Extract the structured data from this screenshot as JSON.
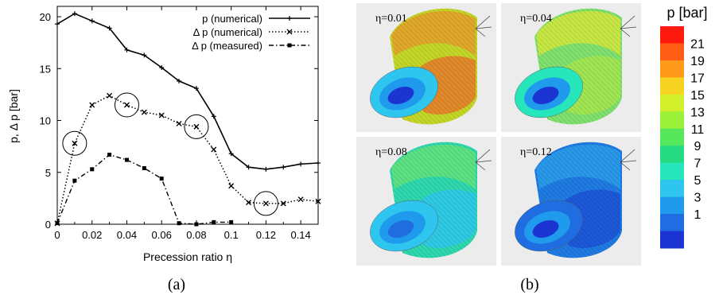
{
  "panels": {
    "a_label": "(a)",
    "b_label": "(b)"
  },
  "chart_data": [
    {
      "type": "line",
      "xlabel": "Precession ratio η",
      "ylabel": "p, Δ p [bar]",
      "xlim": [
        0,
        0.15
      ],
      "ylim": [
        0,
        21
      ],
      "xticks": [
        "0",
        "0.02",
        "0.04",
        "0.06",
        "0.08",
        "0.1",
        "0.12",
        "0.14"
      ],
      "yticks": [
        "0",
        "5",
        "10",
        "15",
        "20"
      ],
      "grid": false,
      "legend_position": "top-right",
      "series": [
        {
          "name": "p (numerical)",
          "style": "solid",
          "marker": "plus",
          "color": "#000000",
          "x": [
            0,
            0.01,
            0.02,
            0.03,
            0.04,
            0.05,
            0.06,
            0.07,
            0.08,
            0.09,
            0.1,
            0.11,
            0.12,
            0.13,
            0.14,
            0.15
          ],
          "y": [
            19.3,
            20.3,
            19.6,
            18.9,
            16.8,
            16.3,
            15.1,
            13.8,
            13.1,
            10.4,
            6.8,
            5.5,
            5.3,
            5.5,
            5.8,
            5.9
          ]
        },
        {
          "name": "Δ p (numerical)",
          "style": "dotted",
          "marker": "cross",
          "color": "#000000",
          "x": [
            0,
            0.01,
            0.02,
            0.03,
            0.04,
            0.05,
            0.06,
            0.07,
            0.08,
            0.09,
            0.1,
            0.11,
            0.12,
            0.13,
            0.14,
            0.15
          ],
          "y": [
            0.1,
            7.8,
            11.5,
            12.4,
            11.5,
            10.8,
            10.5,
            9.7,
            9.4,
            7.2,
            3.7,
            2.1,
            2.0,
            2.0,
            2.4,
            2.2
          ]
        },
        {
          "name": "Δ p (measured)",
          "style": "dashdot",
          "marker": "square",
          "color": "#000000",
          "x": [
            0,
            0.01,
            0.02,
            0.03,
            0.04,
            0.05,
            0.06,
            0.07,
            0.08,
            0.09,
            0.1
          ],
          "y": [
            0.1,
            4.2,
            5.3,
            6.7,
            6.2,
            5.4,
            4.4,
            0.1,
            0.0,
            0.2,
            0.2
          ]
        }
      ],
      "annotations": {
        "circles": [
          {
            "x": 0.01,
            "y": 7.8
          },
          {
            "x": 0.04,
            "y": 11.5
          },
          {
            "x": 0.08,
            "y": 9.4
          },
          {
            "x": 0.12,
            "y": 2.0
          }
        ]
      }
    },
    {
      "type": "heatmap",
      "title": "p [bar]",
      "colorbar_labels": [
        "21",
        "19",
        "17",
        "15",
        "13",
        "11",
        "9",
        "7",
        "5",
        "3",
        "1"
      ],
      "colorbar_colors": [
        "#ff1a0f",
        "#ff5d15",
        "#ff9a1b",
        "#f7d321",
        "#d2f02c",
        "#9bf03a",
        "#56e85a",
        "#27db83",
        "#27e6bb",
        "#2ec6ef",
        "#1f9aec",
        "#1f6de0",
        "#1c35d2"
      ],
      "maps": [
        {
          "label": "η=0.01",
          "base": "#c3d628",
          "top": "#e4a02a",
          "band": "#e9762a",
          "face_outer": "#2ec6ef",
          "face_inner": "#1c35d2"
        },
        {
          "label": "η=0.04",
          "base": "#7fe06d",
          "top": "#d2e73c",
          "band": "#a9e64b",
          "face_outer": "#27e6bb",
          "face_inner": "#1c35d2"
        },
        {
          "label": "η=0.08",
          "base": "#2ed7ae",
          "top": "#63e37d",
          "band": "#2ec6ef",
          "face_outer": "#2ec6ef",
          "face_inner": "#1f6de0"
        },
        {
          "label": "η=0.12",
          "base": "#1f7ae2",
          "top": "#2b9de9",
          "band": "#1c50d6",
          "face_outer": "#1f6de0",
          "face_inner": "#1c35d2"
        }
      ]
    }
  ]
}
